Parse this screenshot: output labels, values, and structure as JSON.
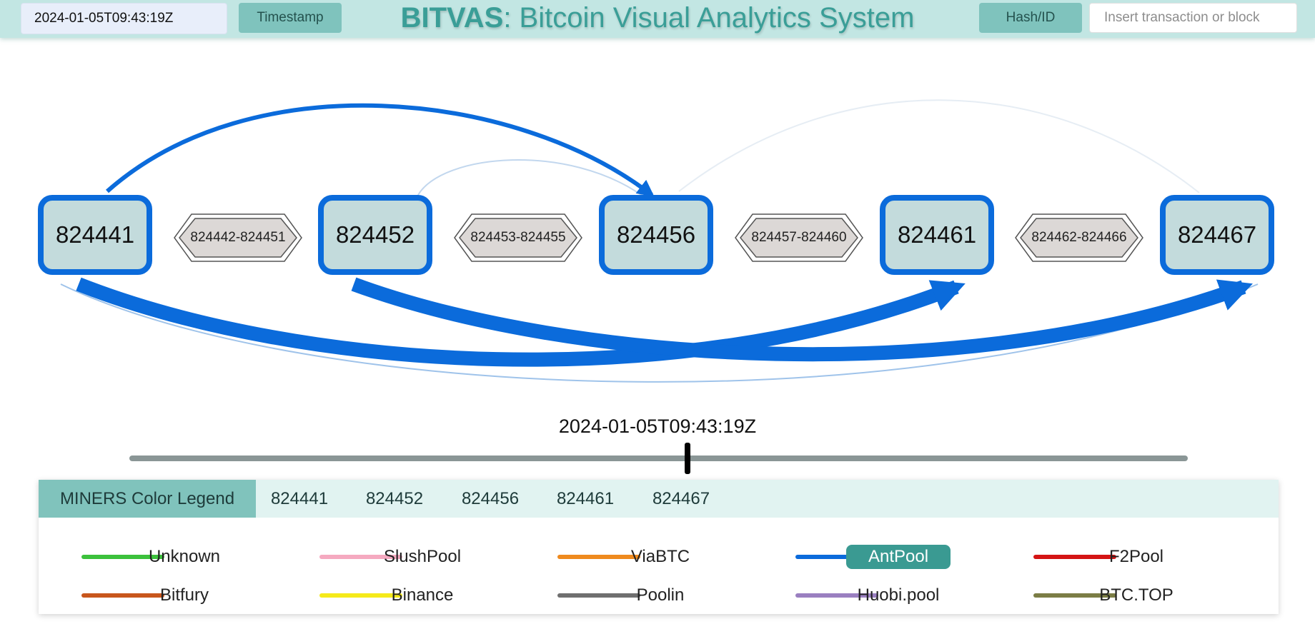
{
  "header": {
    "timestamp_value": "2024-01-05T09:43:19Z",
    "timestamp_button": "Timestamp",
    "title_bold": "BITVAS",
    "title_rest": ": Bitcoin Visual Analytics System",
    "hash_button": "Hash/ID",
    "hash_placeholder": "Insert transaction or block"
  },
  "graph": {
    "blocks": [
      "824441",
      "824452",
      "824456",
      "824461",
      "824467"
    ],
    "ranges": [
      "824442-824451",
      "824453-824455",
      "824457-824460",
      "824462-824466"
    ],
    "link_color": "#0b6bdb",
    "node_fill": "#c3dbdc",
    "range_fill": "#dcd8d6"
  },
  "timeline": {
    "current_time": "2024-01-05T09:43:19Z"
  },
  "legend": {
    "tab_title": "MINERS Color Legend",
    "tabs": [
      "824441",
      "824452",
      "824456",
      "824461",
      "824467"
    ],
    "miners": [
      {
        "name": "Unknown",
        "color": "#3cc13c"
      },
      {
        "name": "SlushPool",
        "color": "#f5a9c0"
      },
      {
        "name": "ViaBTC",
        "color": "#ef8a1e"
      },
      {
        "name": "AntPool",
        "color": "#0b6bdb",
        "selected": true
      },
      {
        "name": "F2Pool",
        "color": "#d41414"
      },
      {
        "name": "Bitfury",
        "color": "#c8561c"
      },
      {
        "name": "Binance",
        "color": "#f5ea1a"
      },
      {
        "name": "Poolin",
        "color": "#6f6f6f"
      },
      {
        "name": "Huobi.pool",
        "color": "#9a7fc0"
      },
      {
        "name": "BTC.TOP",
        "color": "#7b7d45"
      }
    ]
  }
}
